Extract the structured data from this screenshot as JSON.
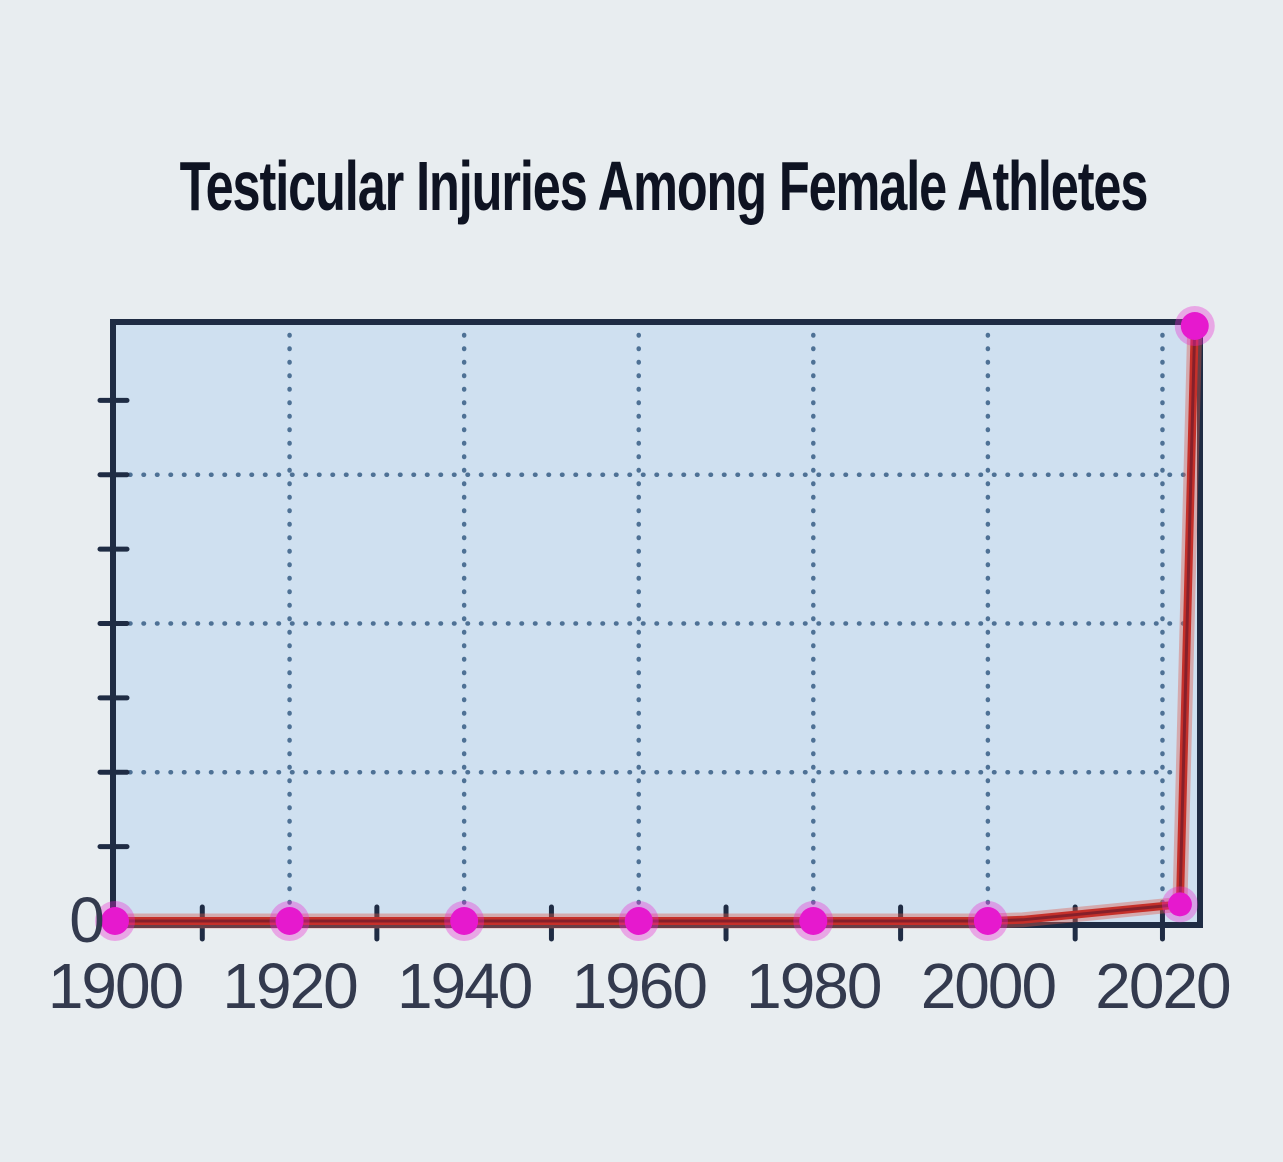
{
  "title": {
    "text": "Testicular Injuries Among Female Athletes"
  },
  "colors": {
    "page_bg": "#e8edf0",
    "plot_bg": "#cfe0f0",
    "axis": "#1f2c44",
    "grid_dots": "#4e7195",
    "line_red": "#c5302a",
    "line_core": "#86202a",
    "line_glow": "rgba(220,90,75,0.40)",
    "marker_magenta": "#e619ce",
    "marker_glow": "rgba(233,36,208,0.35)",
    "tick_label": "#333a4e",
    "title_text": "#0e1322"
  },
  "chart_data": {
    "type": "line",
    "title": "Testicular Injuries Among Female Athletes",
    "xlabel": "",
    "ylabel": "",
    "xlim": [
      1900,
      2024.3
    ],
    "ylim": [
      0,
      100
    ],
    "grid": true,
    "legend": false,
    "series": [
      {
        "name": "testicular-injuries-per-year",
        "points": [
          {
            "x": 1900,
            "y": 0,
            "marker": true,
            "r": 14
          },
          {
            "x": 1920,
            "y": 0,
            "marker": true,
            "r": 14
          },
          {
            "x": 1940,
            "y": 0,
            "marker": true,
            "r": 14
          },
          {
            "x": 1960,
            "y": 0,
            "marker": true,
            "r": 14
          },
          {
            "x": 1980,
            "y": 0,
            "marker": true,
            "r": 14
          },
          {
            "x": 2000,
            "y": 0,
            "marker": true,
            "r": 14
          },
          {
            "x": 2004,
            "y": 0.2,
            "marker": false,
            "r": 0
          },
          {
            "x": 2022,
            "y": 2.8,
            "marker": true,
            "r": 12
          },
          {
            "x": 2023.7,
            "y": 100,
            "marker": true,
            "r": 14
          }
        ]
      }
    ],
    "x_major_ticks": [
      1900,
      1920,
      1940,
      1960,
      1980,
      2000,
      2020
    ],
    "x_tick_labels": [
      "1900",
      "1920",
      "1940",
      "1960",
      "1980",
      "2000",
      "2020"
    ],
    "x_minor_ticks": [
      1910,
      1930,
      1950,
      1970,
      1990,
      2010,
      2020
    ],
    "x_gridlines": [
      1920,
      1940,
      1960,
      1980,
      2000,
      2020
    ],
    "y_minor_ticks": [
      12.5,
      25,
      37.5,
      50,
      62.5,
      75,
      87.5
    ],
    "y_gridlines": [
      25,
      50,
      75
    ],
    "y_axis_label_zero": "0"
  }
}
